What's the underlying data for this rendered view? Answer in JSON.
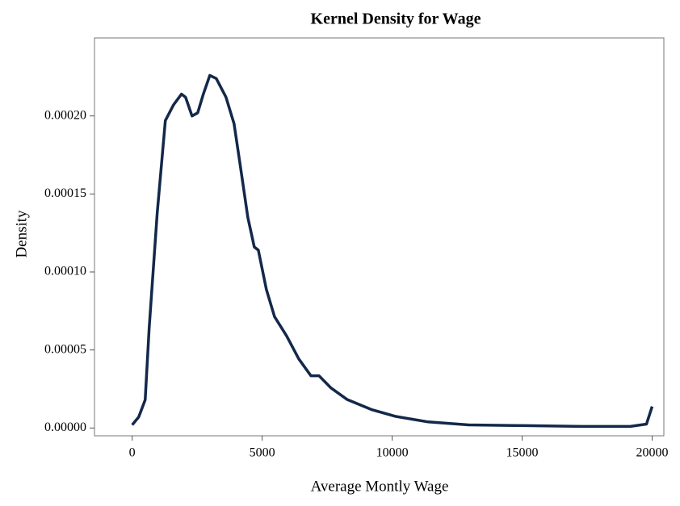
{
  "chart_data": {
    "type": "line",
    "title": "Kernel Density for Wage",
    "x_label": "Average Montly Wage",
    "y_label": "Density",
    "x": [
      0,
      250,
      500,
      653,
      964,
      1275,
      1586,
      1897,
      2053,
      2302,
      2520,
      2737,
      2986,
      3235,
      3608,
      3919,
      4168,
      4448,
      4697,
      4852,
      5163,
      5474,
      5941,
      6407,
      6874,
      7185,
      7651,
      8274,
      9207,
      10140,
      11384,
      12940,
      15117,
      17294,
      19160,
      19782,
      20000
    ],
    "series": [
      {
        "name": "Density",
        "color": "#13284a",
        "values": [
          2e-06,
          7e-06,
          1.8e-05,
          6.4e-05,
          0.000138,
          0.000197,
          0.000207,
          0.000214,
          0.000212,
          0.0002,
          0.000202,
          0.000214,
          0.000226,
          0.000224,
          0.000212,
          0.000195,
          0.000167,
          0.000135,
          0.000116,
          0.000114,
          8.87e-05,
          7.14e-05,
          5.9e-05,
          4.43e-05,
          3.35e-05,
          3.35e-05,
          2.56e-05,
          1.82e-05,
          1.18e-05,
          7.4e-06,
          3.9e-06,
          2e-06,
          1.5e-06,
          1e-06,
          1e-06,
          2.5e-06,
          1.38e-05
        ]
      }
    ],
    "xlim": [
      -1450,
      20450
    ],
    "ylim": [
      -5e-06,
      0.00025
    ],
    "xticks": [
      0,
      5000,
      10000,
      15000,
      20000
    ],
    "yticks": [
      {
        "value": 0,
        "label": "0.00000"
      },
      {
        "value": 5e-05,
        "label": "0.00005"
      },
      {
        "value": 0.0001,
        "label": "0.00010"
      },
      {
        "value": 0.00015,
        "label": "0.00015"
      },
      {
        "value": 0.0002,
        "label": "0.00020"
      }
    ]
  }
}
